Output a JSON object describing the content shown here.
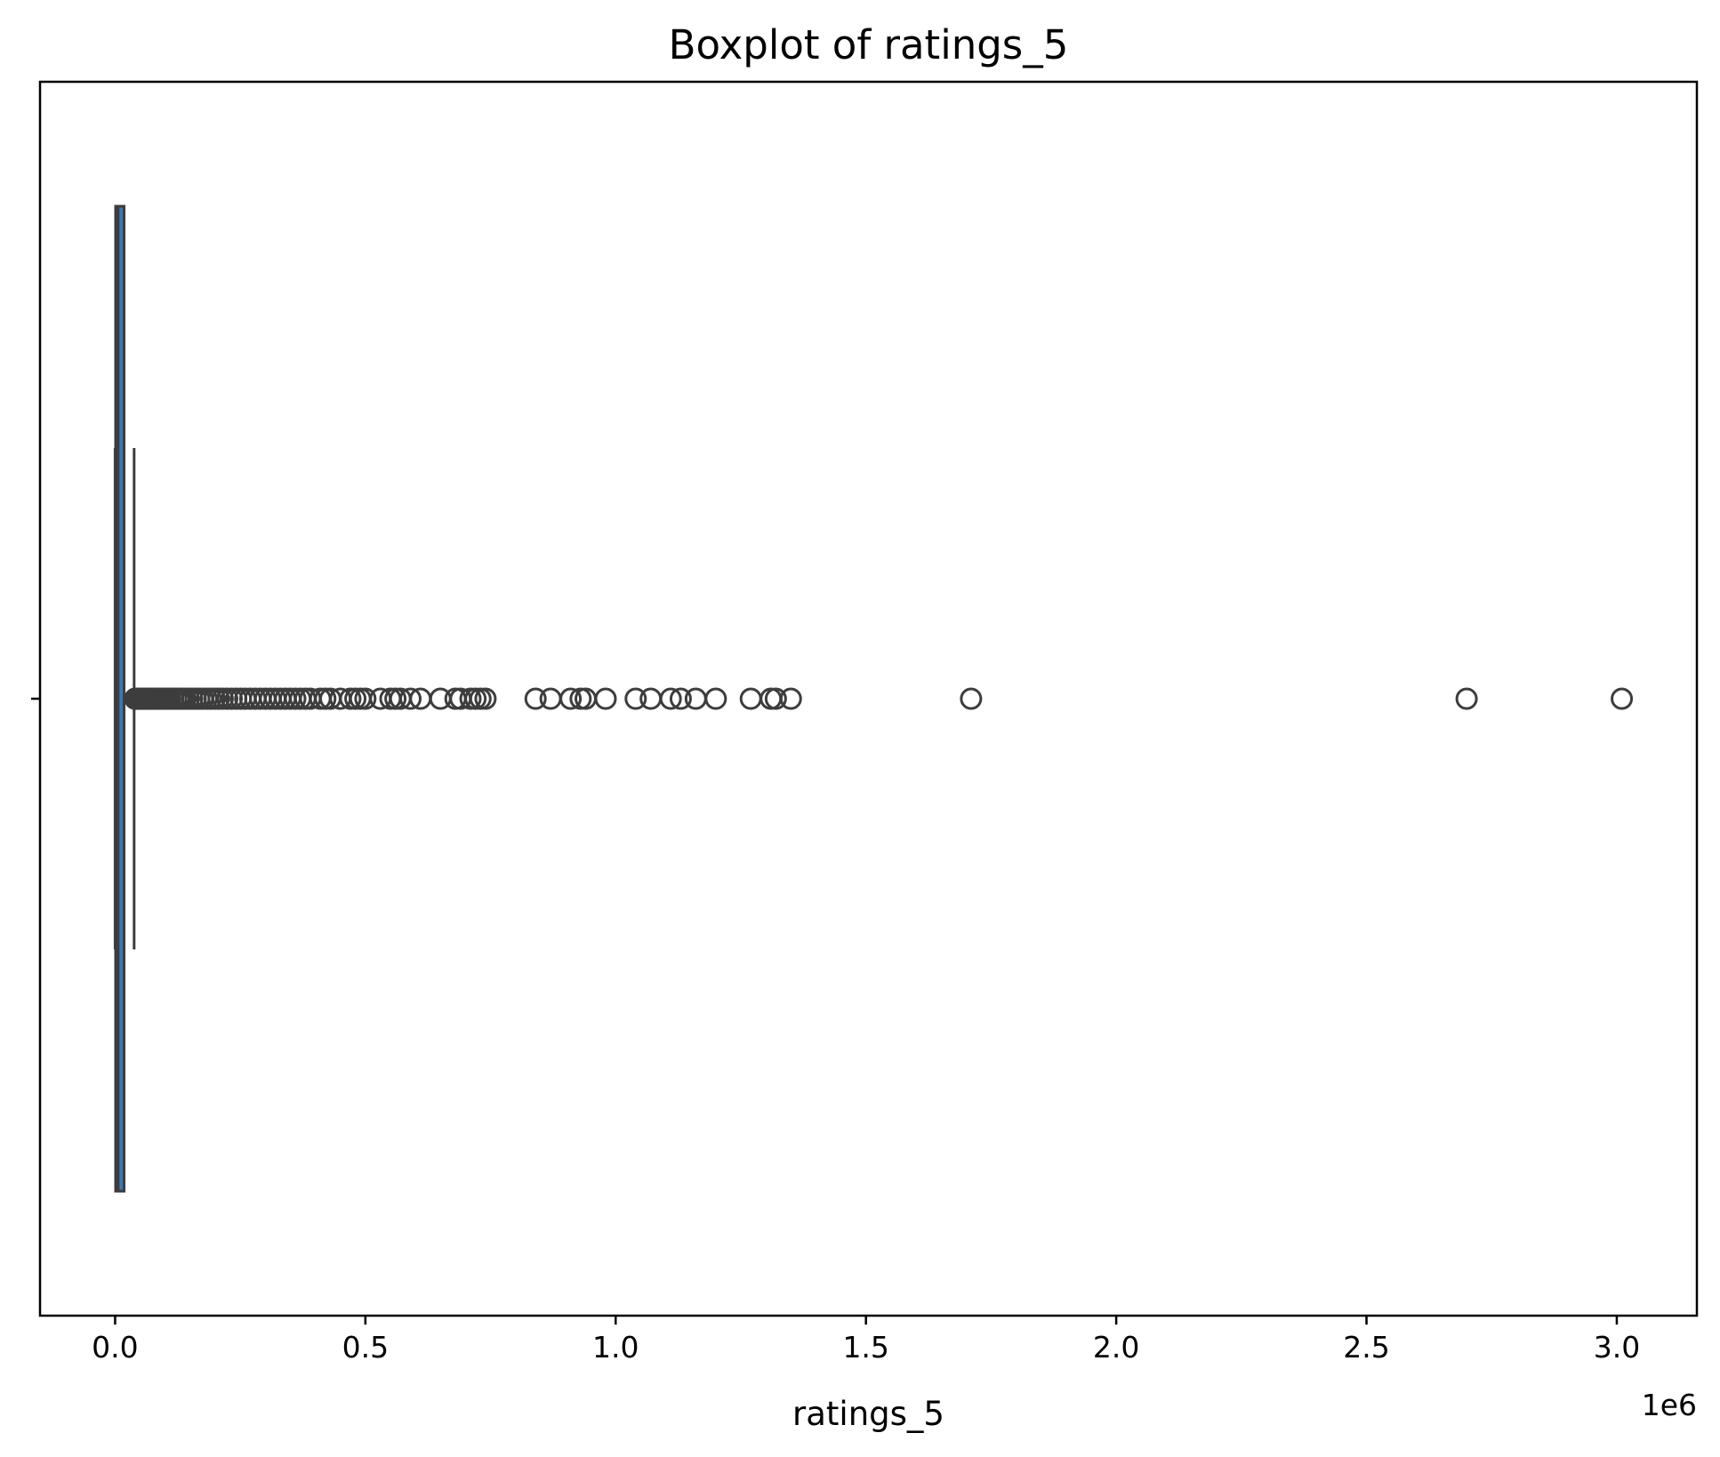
{
  "chart_data": {
    "type": "boxplot",
    "orientation": "horizontal",
    "title": "Boxplot of ratings_5",
    "xlabel": "ratings_5",
    "ylabel": "",
    "x_offset_label": "1e6",
    "x_scale_factor": 1000000,
    "xlim": [
      -0.15,
      3.16
    ],
    "xticks": [
      0.0,
      0.5,
      1.0,
      1.5,
      2.0,
      2.5,
      3.0
    ],
    "xtick_labels": [
      "0.0",
      "0.5",
      "1.0",
      "1.5",
      "2.0",
      "2.5",
      "3.0"
    ],
    "grid": false,
    "box": {
      "whisker_low": 0.0,
      "q1": 0.001,
      "median": 0.006,
      "q3": 0.018,
      "whisker_high": 0.038
    },
    "outliers": [
      0.04,
      0.043,
      0.046,
      0.049,
      0.052,
      0.055,
      0.058,
      0.061,
      0.064,
      0.067,
      0.07,
      0.074,
      0.078,
      0.082,
      0.086,
      0.09,
      0.095,
      0.1,
      0.105,
      0.11,
      0.116,
      0.122,
      0.128,
      0.134,
      0.14,
      0.147,
      0.154,
      0.161,
      0.168,
      0.175,
      0.183,
      0.191,
      0.199,
      0.207,
      0.215,
      0.224,
      0.233,
      0.242,
      0.251,
      0.26,
      0.27,
      0.28,
      0.29,
      0.3,
      0.31,
      0.32,
      0.33,
      0.34,
      0.35,
      0.36,
      0.37,
      0.38,
      0.39,
      0.41,
      0.42,
      0.43,
      0.45,
      0.47,
      0.48,
      0.49,
      0.5,
      0.53,
      0.55,
      0.56,
      0.57,
      0.59,
      0.61,
      0.65,
      0.68,
      0.69,
      0.71,
      0.72,
      0.73,
      0.74,
      0.84,
      0.87,
      0.91,
      0.93,
      0.94,
      0.98,
      1.04,
      1.07,
      1.11,
      1.13,
      1.16,
      1.2,
      1.27,
      1.31,
      1.32,
      1.35,
      1.71,
      2.7,
      3.01
    ],
    "box_color": "#3a78b5",
    "line_color": "#3d3d3d"
  }
}
